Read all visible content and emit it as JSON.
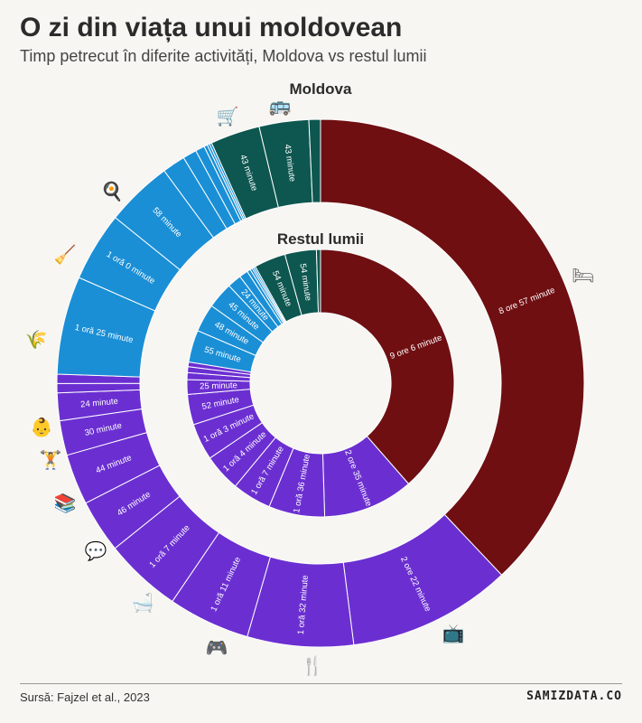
{
  "title": "O zi din viața unui moldovean",
  "subtitle": "Timp petrecut în diferite activități, Moldova vs restul lumii",
  "source": "Sursă: Fajzel et al., 2023",
  "brand": "SAMIZDATA.CO",
  "colors": {
    "sleep": "#6f0f12",
    "personal": "#6b2fd1",
    "household": "#1a8fd6",
    "travel": "#0e5750",
    "divider": "#ffffff"
  },
  "chart_data": {
    "type": "donut",
    "unit": "minutes",
    "rings": [
      {
        "name": "Moldova",
        "segments": [
          {
            "value": 537,
            "label": "8 ore 57 minute",
            "group": "sleep"
          },
          {
            "value": 142,
            "label": "2 ore 22 minute",
            "group": "personal"
          },
          {
            "value": 92,
            "label": "1 oră 32 minute",
            "group": "personal"
          },
          {
            "value": 71,
            "label": "1 oră 11 minute",
            "group": "personal"
          },
          {
            "value": 67,
            "label": "1 oră 7 minute",
            "group": "personal"
          },
          {
            "value": 46,
            "label": "46 minute",
            "group": "personal"
          },
          {
            "value": 44,
            "label": "44 minute",
            "group": "personal"
          },
          {
            "value": 30,
            "label": "30 minute",
            "group": "personal"
          },
          {
            "value": 24,
            "label": "24 minute",
            "group": "personal"
          },
          {
            "value": 8,
            "label": "",
            "group": "personal"
          },
          {
            "value": 8,
            "label": "",
            "group": "personal"
          },
          {
            "value": 85,
            "label": "1 oră 25 minute",
            "group": "household"
          },
          {
            "value": 60,
            "label": "1 oră 0 minute",
            "group": "household"
          },
          {
            "value": 58,
            "label": "58 minute",
            "group": "household"
          },
          {
            "value": 20,
            "label": "",
            "group": "household"
          },
          {
            "value": 12,
            "label": "",
            "group": "household"
          },
          {
            "value": 8,
            "label": "",
            "group": "household"
          },
          {
            "value": 3,
            "label": "",
            "group": "household"
          },
          {
            "value": 2,
            "label": "",
            "group": "household"
          },
          {
            "value": 2,
            "label": "",
            "group": "household"
          },
          {
            "value": 43,
            "label": "43 minute",
            "group": "travel"
          },
          {
            "value": 43,
            "label": "43 minute",
            "group": "travel"
          },
          {
            "value": 10,
            "label": "",
            "group": "travel"
          }
        ]
      },
      {
        "name": "Restul lumii",
        "segments": [
          {
            "value": 546,
            "label": "9 ore 6 minute",
            "group": "sleep"
          },
          {
            "value": 155,
            "label": "2 ore 35 minute",
            "group": "personal"
          },
          {
            "value": 96,
            "label": "1 oră 36 minute",
            "group": "personal"
          },
          {
            "value": 67,
            "label": "1 oră 7 minute",
            "group": "personal"
          },
          {
            "value": 64,
            "label": "1 oră 4 minute",
            "group": "personal"
          },
          {
            "value": 63,
            "label": "1 oră 3 minute",
            "group": "personal"
          },
          {
            "value": 52,
            "label": "52 minute",
            "group": "personal"
          },
          {
            "value": 25,
            "label": "25 minute",
            "group": "personal"
          },
          {
            "value": 12,
            "label": "",
            "group": "personal"
          },
          {
            "value": 10,
            "label": "",
            "group": "personal"
          },
          {
            "value": 8,
            "label": "",
            "group": "personal"
          },
          {
            "value": 55,
            "label": "55 minute",
            "group": "household"
          },
          {
            "value": 48,
            "label": "48 minute",
            "group": "household"
          },
          {
            "value": 45,
            "label": "45 minute",
            "group": "household"
          },
          {
            "value": 24,
            "label": "24 minute",
            "group": "household"
          },
          {
            "value": 15,
            "label": "",
            "group": "household"
          },
          {
            "value": 6,
            "label": "",
            "group": "household"
          },
          {
            "value": 4,
            "label": "",
            "group": "household"
          },
          {
            "value": 3,
            "label": "",
            "group": "household"
          },
          {
            "value": 3,
            "label": "",
            "group": "household"
          },
          {
            "value": 54,
            "label": "54 minute",
            "group": "travel"
          },
          {
            "value": 54,
            "label": "54 minute",
            "group": "travel"
          },
          {
            "value": 7,
            "label": "",
            "group": "travel"
          }
        ]
      }
    ]
  },
  "icons": [
    {
      "name": "bed-icon",
      "glyph": "🛏"
    },
    {
      "name": "tv-icon",
      "glyph": "📺"
    },
    {
      "name": "fork-knife-icon",
      "glyph": "🍴"
    },
    {
      "name": "gamepad-icon",
      "glyph": "🎮"
    },
    {
      "name": "bathtub-icon",
      "glyph": "🛁"
    },
    {
      "name": "speech-bubble-icon",
      "glyph": "💬"
    },
    {
      "name": "books-icon",
      "glyph": "📚"
    },
    {
      "name": "weightlifter-icon",
      "glyph": "🏋"
    },
    {
      "name": "baby-icon",
      "glyph": "👶"
    },
    {
      "name": "wheat-icon",
      "glyph": "🌾"
    },
    {
      "name": "broom-icon",
      "glyph": "🧹"
    },
    {
      "name": "frying-pan-icon",
      "glyph": "🍳"
    },
    {
      "name": "shopping-cart-icon",
      "glyph": "🛒"
    },
    {
      "name": "bus-icon",
      "glyph": "🚌"
    }
  ]
}
